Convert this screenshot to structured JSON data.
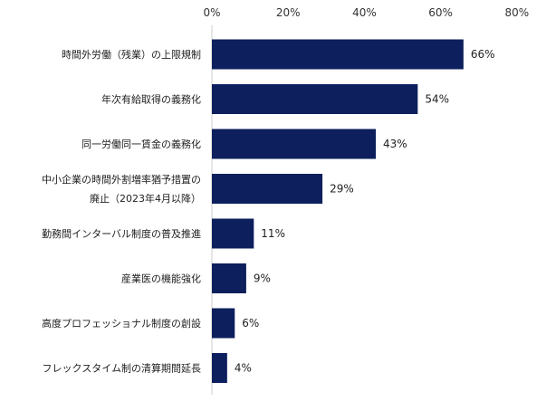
{
  "chart_data": {
    "type": "bar",
    "orientation": "horizontal",
    "categories": [
      [
        "時間外労働（残業）の上限規制"
      ],
      [
        "年次有給取得の義務化"
      ],
      [
        "同一労働同一賃金の義務化"
      ],
      [
        "中小企業の時間外割増率猶予措置の",
        "廃止（2023年4月以降）"
      ],
      [
        "勤務間インターバル制度の普及推進"
      ],
      [
        "産業医の機能強化"
      ],
      [
        "高度プロフェッショナル制度の創設"
      ],
      [
        "フレックスタイム制の清算期間延長"
      ]
    ],
    "values": [
      66,
      54,
      43,
      29,
      11,
      9,
      6,
      4
    ],
    "value_labels": [
      "66%",
      "54%",
      "43%",
      "29%",
      "11%",
      "9%",
      "6%",
      "4%"
    ],
    "xlim": [
      0,
      80
    ],
    "x_ticks": [
      0,
      20,
      40,
      60,
      80
    ],
    "x_tick_labels": [
      "0%",
      "20%",
      "40%",
      "60%",
      "80%"
    ],
    "x_axis_position": "top",
    "grid": false,
    "legend": "none",
    "bar_color": "#0d1f5c"
  }
}
